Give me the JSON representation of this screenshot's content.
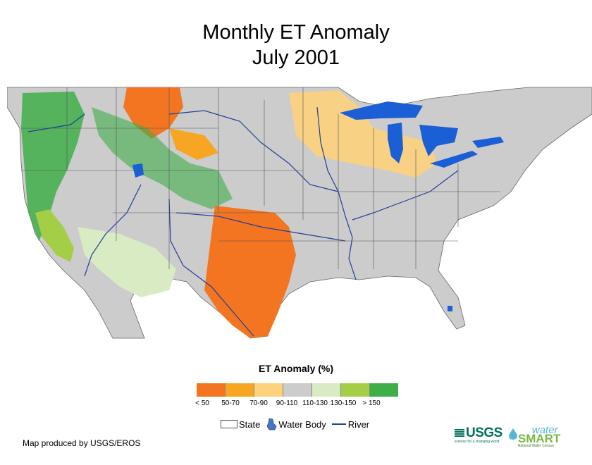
{
  "title": {
    "line1": "Monthly ET Anomaly",
    "line2": "July 2001"
  },
  "legend": {
    "title": "ET Anomaly (%)",
    "classes": [
      {
        "label": "< 50",
        "color": "#f37521"
      },
      {
        "label": "50-70",
        "color": "#f7a623"
      },
      {
        "label": "70-90",
        "color": "#fdd27c"
      },
      {
        "label": "90-110",
        "color": "#cccccc"
      },
      {
        "label": "110-130",
        "color": "#d9ebc3"
      },
      {
        "label": "130-150",
        "color": "#a4ce46"
      },
      {
        "label": "> 150",
        "color": "#3fae49"
      }
    ],
    "key": {
      "state": "State",
      "water_body": "Water Body",
      "river": "River"
    },
    "water_color": "#1a5fd6",
    "river_color": "#1f3f9a"
  },
  "credit": "Map produced by USGS/EROS",
  "logos": {
    "usgs": "USGS",
    "usgs_tagline": "science for a changing world",
    "watersmart_water": "water",
    "watersmart_smart": "SMART",
    "watersmart_sub": "National Water Census"
  },
  "map_regions": [
    {
      "name": "southern-plains",
      "class": "< 50"
    },
    {
      "name": "northern-great-plains",
      "class": "< 50"
    },
    {
      "name": "upper-midwest",
      "class": "70-90"
    },
    {
      "name": "pacific-northwest",
      "class": "> 150"
    },
    {
      "name": "rocky-mountains",
      "class": "> 150"
    },
    {
      "name": "southwest-desert",
      "class": "110-130"
    },
    {
      "name": "eastern-us",
      "class": "90-110"
    }
  ]
}
